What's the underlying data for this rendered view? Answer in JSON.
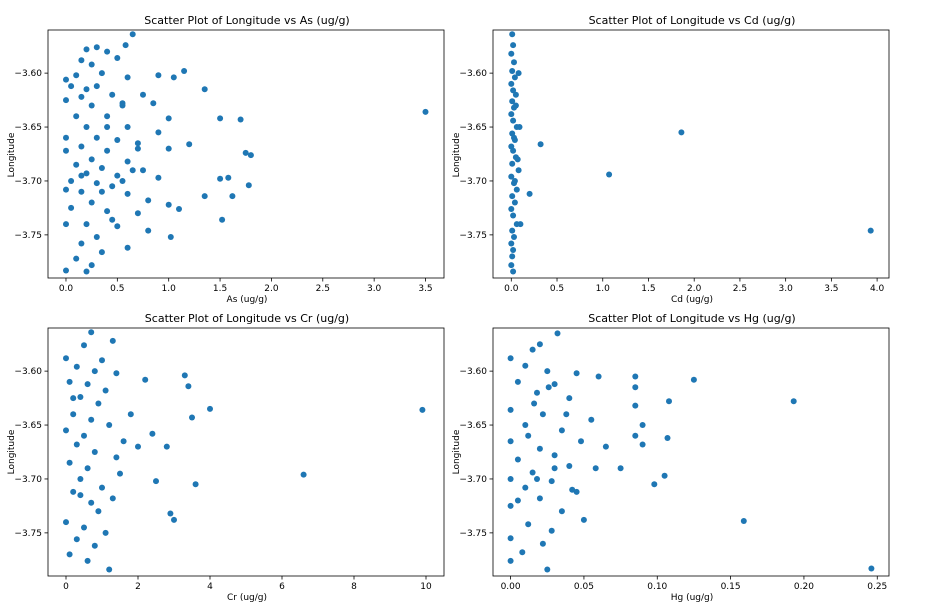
{
  "figure": {
    "point_color": "#1f77b4"
  },
  "chart_data": [
    {
      "type": "scatter",
      "title": "Scatter Plot of Longitude vs As (ug/g)",
      "xlabel": "As (ug/g)",
      "ylabel": "Longitude",
      "xlim": [
        -0.175,
        3.68
      ],
      "ylim": [
        -3.79,
        -3.56
      ],
      "xticks": [
        0.0,
        0.5,
        1.0,
        1.5,
        2.0,
        2.5,
        3.0,
        3.5
      ],
      "xtick_labels": [
        "0.0",
        "0.5",
        "1.0",
        "1.5",
        "2.0",
        "2.5",
        "3.0",
        "3.5"
      ],
      "yticks": [
        -3.75,
        -3.7,
        -3.65,
        -3.6
      ],
      "ytick_labels": [
        "−3.75",
        "−3.70",
        "−3.65",
        "−3.60"
      ],
      "grid": false,
      "points": [
        [
          0.65,
          -3.564
        ],
        [
          0.58,
          -3.574
        ],
        [
          0.3,
          -3.576
        ],
        [
          0.2,
          -3.578
        ],
        [
          0.4,
          -3.58
        ],
        [
          0.15,
          -3.588
        ],
        [
          0.5,
          -3.586
        ],
        [
          0.25,
          -3.592
        ],
        [
          1.15,
          -3.598
        ],
        [
          0.1,
          -3.602
        ],
        [
          0.35,
          -3.6
        ],
        [
          0.9,
          -3.602
        ],
        [
          1.05,
          -3.604
        ],
        [
          0.0,
          -3.606
        ],
        [
          0.6,
          -3.604
        ],
        [
          0.05,
          -3.612
        ],
        [
          0.3,
          -3.612
        ],
        [
          1.35,
          -3.615
        ],
        [
          0.45,
          -3.62
        ],
        [
          0.15,
          -3.622
        ],
        [
          0.75,
          -3.62
        ],
        [
          0.0,
          -3.625
        ],
        [
          0.25,
          -3.63
        ],
        [
          0.55,
          -3.628
        ],
        [
          0.85,
          -3.628
        ],
        [
          3.5,
          -3.636
        ],
        [
          0.1,
          -3.64
        ],
        [
          0.4,
          -3.64
        ],
        [
          1.0,
          -3.642
        ],
        [
          1.5,
          -3.642
        ],
        [
          1.7,
          -3.643
        ],
        [
          0.2,
          -3.65
        ],
        [
          0.6,
          -3.65
        ],
        [
          0.9,
          -3.655
        ],
        [
          0.0,
          -3.66
        ],
        [
          0.3,
          -3.66
        ],
        [
          0.5,
          -3.662
        ],
        [
          0.7,
          -3.665
        ],
        [
          1.2,
          -3.666
        ],
        [
          0.15,
          -3.668
        ],
        [
          0.0,
          -3.672
        ],
        [
          0.4,
          -3.672
        ],
        [
          1.0,
          -3.67
        ],
        [
          1.75,
          -3.674
        ],
        [
          1.8,
          -3.676
        ],
        [
          0.25,
          -3.68
        ],
        [
          0.6,
          -3.682
        ],
        [
          0.1,
          -3.685
        ],
        [
          0.35,
          -3.688
        ],
        [
          0.75,
          -3.69
        ],
        [
          0.2,
          -3.693
        ],
        [
          0.5,
          -3.695
        ],
        [
          0.9,
          -3.697
        ],
        [
          0.05,
          -3.7
        ],
        [
          0.3,
          -3.702
        ],
        [
          1.5,
          -3.698
        ],
        [
          1.58,
          -3.697
        ],
        [
          0.45,
          -3.705
        ],
        [
          0.0,
          -3.708
        ],
        [
          1.78,
          -3.704
        ],
        [
          0.15,
          -3.71
        ],
        [
          0.6,
          -3.712
        ],
        [
          1.35,
          -3.714
        ],
        [
          1.62,
          -3.714
        ],
        [
          0.8,
          -3.718
        ],
        [
          0.25,
          -3.72
        ],
        [
          1.0,
          -3.722
        ],
        [
          1.1,
          -3.726
        ],
        [
          0.05,
          -3.725
        ],
        [
          0.4,
          -3.728
        ],
        [
          0.7,
          -3.73
        ],
        [
          1.52,
          -3.736
        ],
        [
          0.2,
          -3.74
        ],
        [
          0.5,
          -3.742
        ],
        [
          0.0,
          -3.74
        ],
        [
          0.8,
          -3.746
        ],
        [
          1.02,
          -3.752
        ],
        [
          0.3,
          -3.752
        ],
        [
          0.15,
          -3.758
        ],
        [
          0.6,
          -3.762
        ],
        [
          0.35,
          -3.766
        ],
        [
          0.1,
          -3.772
        ],
        [
          0.25,
          -3.778
        ],
        [
          0.0,
          -3.783
        ],
        [
          0.2,
          -3.784
        ],
        [
          0.45,
          -3.736
        ],
        [
          0.55,
          -3.7
        ],
        [
          0.65,
          -3.69
        ],
        [
          0.7,
          -3.67
        ],
        [
          0.15,
          -3.695
        ],
        [
          0.35,
          -3.71
        ],
        [
          0.4,
          -3.65
        ],
        [
          0.55,
          -3.63
        ],
        [
          0.2,
          -3.615
        ]
      ]
    },
    {
      "type": "scatter",
      "title": "Scatter Plot of Longitude vs Cd (ug/g)",
      "xlabel": "Cd (ug/g)",
      "ylabel": "Longitude",
      "xlim": [
        -0.2,
        4.13
      ],
      "ylim": [
        -3.79,
        -3.56
      ],
      "xticks": [
        0.0,
        0.5,
        1.0,
        1.5,
        2.0,
        2.5,
        3.0,
        3.5,
        4.0
      ],
      "xtick_labels": [
        "0.0",
        "0.5",
        "1.0",
        "1.5",
        "2.0",
        "2.5",
        "3.0",
        "3.5",
        "4.0"
      ],
      "yticks": [
        -3.75,
        -3.7,
        -3.65,
        -3.6
      ],
      "ytick_labels": [
        "−3.75",
        "−3.70",
        "−3.65",
        "−3.60"
      ],
      "grid": false,
      "points": [
        [
          0.01,
          -3.564
        ],
        [
          0.02,
          -3.574
        ],
        [
          0.0,
          -3.582
        ],
        [
          0.03,
          -3.59
        ],
        [
          0.01,
          -3.598
        ],
        [
          0.04,
          -3.604
        ],
        [
          0.0,
          -3.61
        ],
        [
          0.02,
          -3.616
        ],
        [
          0.05,
          -3.62
        ],
        [
          0.01,
          -3.626
        ],
        [
          0.03,
          -3.632
        ],
        [
          0.0,
          -3.638
        ],
        [
          0.02,
          -3.644
        ],
        [
          0.06,
          -3.65
        ],
        [
          0.01,
          -3.656
        ],
        [
          0.04,
          -3.662
        ],
        [
          0.0,
          -3.668
        ],
        [
          0.32,
          -3.666
        ],
        [
          0.02,
          -3.672
        ],
        [
          0.05,
          -3.678
        ],
        [
          0.01,
          -3.684
        ],
        [
          0.08,
          -3.69
        ],
        [
          0.0,
          -3.696
        ],
        [
          0.03,
          -3.702
        ],
        [
          0.06,
          -3.708
        ],
        [
          0.01,
          -3.714
        ],
        [
          0.2,
          -3.712
        ],
        [
          0.04,
          -3.72
        ],
        [
          0.0,
          -3.726
        ],
        [
          0.02,
          -3.732
        ],
        [
          0.1,
          -3.74
        ],
        [
          0.01,
          -3.746
        ],
        [
          0.03,
          -3.752
        ],
        [
          0.0,
          -3.758
        ],
        [
          0.02,
          -3.764
        ],
        [
          0.01,
          -3.77
        ],
        [
          0.0,
          -3.778
        ],
        [
          0.02,
          -3.784
        ],
        [
          1.07,
          -3.694
        ],
        [
          1.86,
          -3.655
        ],
        [
          3.93,
          -3.746
        ],
        [
          0.05,
          -3.63
        ],
        [
          0.07,
          -3.68
        ],
        [
          0.06,
          -3.74
        ],
        [
          0.04,
          -3.7
        ],
        [
          0.03,
          -3.66
        ],
        [
          0.08,
          -3.6
        ],
        [
          0.09,
          -3.65
        ]
      ]
    },
    {
      "type": "scatter",
      "title": "Scatter Plot of Longitude vs Cr (ug/g)",
      "xlabel": "Cr (ug/g)",
      "ylabel": "Longitude",
      "xlim": [
        -0.5,
        10.5
      ],
      "ylim": [
        -3.79,
        -3.56
      ],
      "xticks": [
        0,
        2,
        4,
        6,
        8,
        10
      ],
      "xtick_labels": [
        "0",
        "2",
        "4",
        "6",
        "8",
        "10"
      ],
      "yticks": [
        -3.75,
        -3.7,
        -3.65,
        -3.6
      ],
      "ytick_labels": [
        "−3.75",
        "−3.70",
        "−3.65",
        "−3.60"
      ],
      "grid": false,
      "points": [
        [
          0.7,
          -3.564
        ],
        [
          1.3,
          -3.572
        ],
        [
          0.5,
          -3.576
        ],
        [
          0.0,
          -3.588
        ],
        [
          1.0,
          -3.59
        ],
        [
          0.3,
          -3.596
        ],
        [
          0.8,
          -3.6
        ],
        [
          1.4,
          -3.602
        ],
        [
          3.3,
          -3.604
        ],
        [
          2.2,
          -3.608
        ],
        [
          0.1,
          -3.61
        ],
        [
          0.6,
          -3.612
        ],
        [
          3.4,
          -3.614
        ],
        [
          1.1,
          -3.618
        ],
        [
          0.4,
          -3.624
        ],
        [
          0.9,
          -3.63
        ],
        [
          4.0,
          -3.635
        ],
        [
          9.9,
          -3.636
        ],
        [
          0.2,
          -3.64
        ],
        [
          0.7,
          -3.645
        ],
        [
          3.5,
          -3.643
        ],
        [
          1.2,
          -3.65
        ],
        [
          0.0,
          -3.655
        ],
        [
          0.5,
          -3.66
        ],
        [
          2.4,
          -3.658
        ],
        [
          1.6,
          -3.665
        ],
        [
          0.3,
          -3.668
        ],
        [
          2.0,
          -3.67
        ],
        [
          2.8,
          -3.67
        ],
        [
          0.8,
          -3.675
        ],
        [
          1.4,
          -3.68
        ],
        [
          0.1,
          -3.685
        ],
        [
          0.6,
          -3.69
        ],
        [
          6.6,
          -3.696
        ],
        [
          2.5,
          -3.702
        ],
        [
          3.6,
          -3.705
        ],
        [
          0.4,
          -3.7
        ],
        [
          1.0,
          -3.708
        ],
        [
          0.2,
          -3.712
        ],
        [
          1.3,
          -3.718
        ],
        [
          0.7,
          -3.722
        ],
        [
          2.9,
          -3.732
        ],
        [
          3.0,
          -3.738
        ],
        [
          0.0,
          -3.74
        ],
        [
          0.5,
          -3.745
        ],
        [
          1.1,
          -3.75
        ],
        [
          0.3,
          -3.756
        ],
        [
          0.8,
          -3.762
        ],
        [
          0.1,
          -3.77
        ],
        [
          0.6,
          -3.776
        ],
        [
          1.2,
          -3.784
        ],
        [
          0.9,
          -3.73
        ],
        [
          0.4,
          -3.715
        ],
        [
          1.5,
          -3.695
        ],
        [
          1.8,
          -3.64
        ],
        [
          0.2,
          -3.625
        ]
      ]
    },
    {
      "type": "scatter",
      "title": "Scatter Plot of Longitude vs Hg (ug/g)",
      "xlabel": "Hg (ug/g)",
      "ylabel": "Longitude",
      "xlim": [
        -0.012,
        0.258
      ],
      "ylim": [
        -3.79,
        -3.56
      ],
      "xticks": [
        0.0,
        0.05,
        0.1,
        0.15,
        0.2,
        0.25
      ],
      "xtick_labels": [
        "0.00",
        "0.05",
        "0.10",
        "0.15",
        "0.20",
        "0.25"
      ],
      "yticks": [
        -3.75,
        -3.7,
        -3.65,
        -3.6
      ],
      "ytick_labels": [
        "−3.75",
        "−3.70",
        "−3.65",
        "−3.60"
      ],
      "grid": false,
      "points": [
        [
          0.032,
          -3.565
        ],
        [
          0.02,
          -3.575
        ],
        [
          0.015,
          -3.58
        ],
        [
          0.0,
          -3.588
        ],
        [
          0.01,
          -3.595
        ],
        [
          0.025,
          -3.6
        ],
        [
          0.045,
          -3.602
        ],
        [
          0.06,
          -3.605
        ],
        [
          0.085,
          -3.605
        ],
        [
          0.125,
          -3.608
        ],
        [
          0.005,
          -3.61
        ],
        [
          0.03,
          -3.612
        ],
        [
          0.085,
          -3.615
        ],
        [
          0.018,
          -3.62
        ],
        [
          0.04,
          -3.625
        ],
        [
          0.108,
          -3.628
        ],
        [
          0.193,
          -3.628
        ],
        [
          0.085,
          -3.632
        ],
        [
          0.0,
          -3.636
        ],
        [
          0.022,
          -3.64
        ],
        [
          0.055,
          -3.645
        ],
        [
          0.01,
          -3.65
        ],
        [
          0.09,
          -3.65
        ],
        [
          0.035,
          -3.655
        ],
        [
          0.085,
          -3.66
        ],
        [
          0.107,
          -3.662
        ],
        [
          0.0,
          -3.665
        ],
        [
          0.048,
          -3.665
        ],
        [
          0.09,
          -3.668
        ],
        [
          0.02,
          -3.672
        ],
        [
          0.065,
          -3.67
        ],
        [
          0.03,
          -3.678
        ],
        [
          0.005,
          -3.682
        ],
        [
          0.04,
          -3.688
        ],
        [
          0.075,
          -3.69
        ],
        [
          0.015,
          -3.694
        ],
        [
          0.058,
          -3.69
        ],
        [
          0.105,
          -3.697
        ],
        [
          0.0,
          -3.7
        ],
        [
          0.028,
          -3.702
        ],
        [
          0.098,
          -3.705
        ],
        [
          0.01,
          -3.708
        ],
        [
          0.045,
          -3.712
        ],
        [
          0.02,
          -3.718
        ],
        [
          0.0,
          -3.725
        ],
        [
          0.035,
          -3.73
        ],
        [
          0.05,
          -3.738
        ],
        [
          0.159,
          -3.739
        ],
        [
          0.012,
          -3.742
        ],
        [
          0.028,
          -3.748
        ],
        [
          0.0,
          -3.755
        ],
        [
          0.022,
          -3.76
        ],
        [
          0.008,
          -3.768
        ],
        [
          0.0,
          -3.776
        ],
        [
          0.025,
          -3.784
        ],
        [
          0.246,
          -3.783
        ],
        [
          0.018,
          -3.7
        ],
        [
          0.03,
          -3.69
        ],
        [
          0.012,
          -3.66
        ],
        [
          0.038,
          -3.64
        ],
        [
          0.005,
          -3.72
        ],
        [
          0.042,
          -3.71
        ],
        [
          0.016,
          -3.63
        ],
        [
          0.026,
          -3.615
        ]
      ]
    }
  ]
}
